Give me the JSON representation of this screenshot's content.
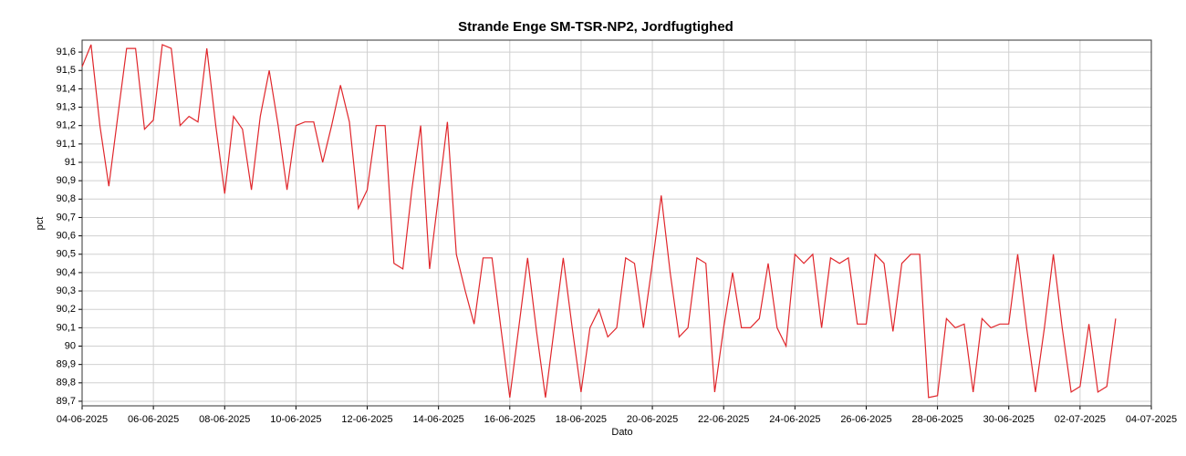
{
  "chart_data": {
    "type": "line",
    "title": "Strande Enge SM-TSR-NP2, Jordfugtighed",
    "x_label": "Dato",
    "y_label": "pct",
    "grid": true,
    "x": [
      "2025-06-04 00:00",
      "2025-06-04 06:00",
      "2025-06-04 12:00",
      "2025-06-04 18:00",
      "2025-06-05 00:00",
      "2025-06-05 06:00",
      "2025-06-05 12:00",
      "2025-06-05 18:00",
      "2025-06-06 00:00",
      "2025-06-06 06:00",
      "2025-06-06 12:00",
      "2025-06-06 18:00",
      "2025-06-07 00:00",
      "2025-06-07 06:00",
      "2025-06-07 12:00",
      "2025-06-07 18:00",
      "2025-06-08 00:00",
      "2025-06-08 06:00",
      "2025-06-08 12:00",
      "2025-06-08 18:00",
      "2025-06-09 00:00",
      "2025-06-09 06:00",
      "2025-06-09 12:00",
      "2025-06-09 18:00",
      "2025-06-10 00:00",
      "2025-06-10 06:00",
      "2025-06-10 12:00",
      "2025-06-10 18:00",
      "2025-06-11 00:00",
      "2025-06-11 06:00",
      "2025-06-11 12:00",
      "2025-06-11 18:00",
      "2025-06-12 00:00",
      "2025-06-12 06:00",
      "2025-06-12 12:00",
      "2025-06-12 18:00",
      "2025-06-13 00:00",
      "2025-06-13 06:00",
      "2025-06-13 12:00",
      "2025-06-13 18:00",
      "2025-06-14 00:00",
      "2025-06-14 06:00",
      "2025-06-14 12:00",
      "2025-06-14 18:00",
      "2025-06-15 00:00",
      "2025-06-15 06:00",
      "2025-06-15 12:00",
      "2025-06-15 18:00",
      "2025-06-16 00:00",
      "2025-06-16 06:00",
      "2025-06-16 12:00",
      "2025-06-16 18:00",
      "2025-06-17 00:00",
      "2025-06-17 06:00",
      "2025-06-17 12:00",
      "2025-06-17 18:00",
      "2025-06-18 00:00",
      "2025-06-18 06:00",
      "2025-06-18 12:00",
      "2025-06-18 18:00",
      "2025-06-19 00:00",
      "2025-06-19 06:00",
      "2025-06-19 12:00",
      "2025-06-19 18:00",
      "2025-06-20 00:00",
      "2025-06-20 06:00",
      "2025-06-20 12:00",
      "2025-06-20 18:00",
      "2025-06-21 00:00",
      "2025-06-21 06:00",
      "2025-06-21 12:00",
      "2025-06-21 18:00",
      "2025-06-22 00:00",
      "2025-06-22 06:00",
      "2025-06-22 12:00",
      "2025-06-22 18:00",
      "2025-06-23 00:00",
      "2025-06-23 06:00",
      "2025-06-23 12:00",
      "2025-06-23 18:00",
      "2025-06-24 00:00",
      "2025-06-24 06:00",
      "2025-06-24 12:00",
      "2025-06-24 18:00",
      "2025-06-25 00:00",
      "2025-06-25 06:00",
      "2025-06-25 12:00",
      "2025-06-25 18:00",
      "2025-06-26 00:00",
      "2025-06-26 06:00",
      "2025-06-26 12:00",
      "2025-06-26 18:00",
      "2025-06-27 00:00",
      "2025-06-27 06:00",
      "2025-06-27 12:00",
      "2025-06-27 18:00",
      "2025-06-28 00:00",
      "2025-06-28 06:00",
      "2025-06-28 12:00",
      "2025-06-28 18:00",
      "2025-06-29 00:00",
      "2025-06-29 06:00",
      "2025-06-29 12:00",
      "2025-06-29 18:00",
      "2025-06-30 00:00",
      "2025-06-30 06:00",
      "2025-06-30 12:00",
      "2025-06-30 18:00",
      "2025-07-01 00:00",
      "2025-07-01 06:00",
      "2025-07-01 12:00",
      "2025-07-01 18:00",
      "2025-07-02 00:00",
      "2025-07-02 06:00",
      "2025-07-02 12:00",
      "2025-07-02 18:00",
      "2025-07-03 00:00"
    ],
    "series": [
      {
        "name": "pct",
        "color": "#e0262b",
        "values": [
          91.52,
          91.64,
          91.2,
          90.87,
          91.25,
          91.62,
          91.62,
          91.18,
          91.23,
          91.64,
          91.62,
          91.2,
          91.25,
          91.22,
          91.62,
          91.2,
          90.83,
          91.25,
          91.18,
          90.85,
          91.25,
          91.5,
          91.2,
          90.85,
          91.2,
          91.22,
          91.22,
          91.0,
          91.2,
          91.42,
          91.22,
          90.75,
          90.85,
          91.2,
          91.2,
          90.45,
          90.42,
          90.85,
          91.2,
          90.42,
          90.82,
          91.22,
          90.5,
          90.3,
          90.12,
          90.48,
          90.48,
          90.1,
          89.72,
          90.1,
          90.48,
          90.08,
          89.72,
          90.1,
          90.48,
          90.1,
          89.75,
          90.1,
          90.2,
          90.05,
          90.1,
          90.48,
          90.45,
          90.1,
          90.45,
          90.82,
          90.4,
          90.05,
          90.1,
          90.48,
          90.45,
          89.75,
          90.1,
          90.4,
          90.1,
          90.1,
          90.15,
          90.45,
          90.1,
          90.0,
          90.5,
          90.45,
          90.5,
          90.1,
          90.48,
          90.45,
          90.48,
          90.12,
          90.12,
          90.5,
          90.45,
          90.08,
          90.45,
          90.5,
          90.5,
          89.72,
          89.73,
          90.15,
          90.1,
          90.12,
          89.75,
          90.15,
          90.1,
          90.12,
          90.12,
          90.5,
          90.1,
          89.75,
          90.1,
          90.5,
          90.1,
          89.75,
          89.78,
          90.12,
          89.75,
          89.78,
          90.15
        ]
      }
    ],
    "xlim": [
      "2025-06-04",
      "2025-07-04"
    ],
    "xticks": [
      {
        "value": "2025-06-04",
        "label": "04-06-2025"
      },
      {
        "value": "2025-06-06",
        "label": "06-06-2025"
      },
      {
        "value": "2025-06-08",
        "label": "08-06-2025"
      },
      {
        "value": "2025-06-10",
        "label": "10-06-2025"
      },
      {
        "value": "2025-06-12",
        "label": "12-06-2025"
      },
      {
        "value": "2025-06-14",
        "label": "14-06-2025"
      },
      {
        "value": "2025-06-16",
        "label": "16-06-2025"
      },
      {
        "value": "2025-06-18",
        "label": "18-06-2025"
      },
      {
        "value": "2025-06-20",
        "label": "20-06-2025"
      },
      {
        "value": "2025-06-22",
        "label": "22-06-2025"
      },
      {
        "value": "2025-06-24",
        "label": "24-06-2025"
      },
      {
        "value": "2025-06-26",
        "label": "26-06-2025"
      },
      {
        "value": "2025-06-28",
        "label": "28-06-2025"
      },
      {
        "value": "2025-06-30",
        "label": "30-06-2025"
      },
      {
        "value": "2025-07-02",
        "label": "02-07-2025"
      },
      {
        "value": "2025-07-04",
        "label": "04-07-2025"
      }
    ],
    "ylim": [
      89.675,
      91.665
    ],
    "yticks": [
      {
        "value": 89.7,
        "label": "89,7"
      },
      {
        "value": 89.8,
        "label": "89,8"
      },
      {
        "value": 89.9,
        "label": "89,9"
      },
      90,
      {
        "value": 90.1,
        "label": "90,1"
      },
      {
        "value": 90.2,
        "label": "90,2"
      },
      {
        "value": 90.3,
        "label": "90,3"
      },
      {
        "value": 90.4,
        "label": "90,4"
      },
      {
        "value": 90.5,
        "label": "90,5"
      },
      {
        "value": 90.6,
        "label": "90,6"
      },
      {
        "value": 90.7,
        "label": "90,7"
      },
      {
        "value": 90.8,
        "label": "90,8"
      },
      {
        "value": 90.9,
        "label": "90,9"
      },
      91,
      {
        "value": 91.1,
        "label": "91,1"
      },
      {
        "value": 91.2,
        "label": "91,2"
      },
      {
        "value": 91.3,
        "label": "91,3"
      },
      {
        "value": 91.4,
        "label": "91,4"
      },
      {
        "value": 91.5,
        "label": "91,5"
      },
      {
        "value": 91.6,
        "label": "91,6"
      }
    ]
  }
}
